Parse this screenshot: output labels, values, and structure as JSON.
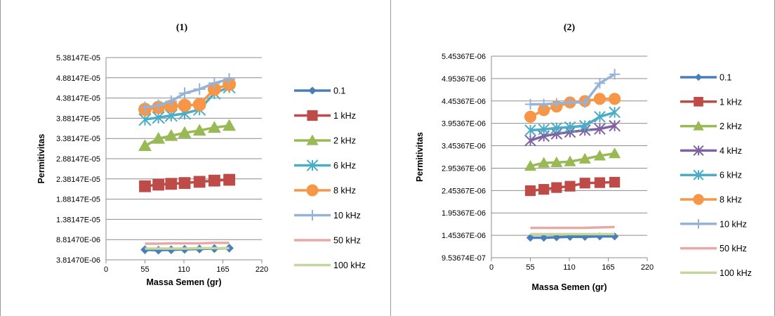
{
  "chart_data": [
    {
      "type": "line",
      "title": "(1)",
      "xlabel": "Massa Semen (gr)",
      "ylabel": "Permitivitas",
      "xlim": [
        0,
        220
      ],
      "x_ticks": [
        "0",
        "55",
        "110",
        "165",
        "220"
      ],
      "y_ticks": [
        "3.81470E-06",
        "8.81470E-06",
        "1.38147E-05",
        "1.88147E-05",
        "2.38147E-05",
        "2.88147E-05",
        "3.38147E-05",
        "3.88147E-05",
        "4.38147E-05",
        "4.88147E-05",
        "5.38147E-05"
      ],
      "ylim": [
        3.8147e-06,
        5.38147e-05
      ],
      "grid": "horizontal",
      "legend_position": "right",
      "x": [
        55,
        74,
        92,
        111,
        132,
        153,
        174
      ],
      "series": [
        {
          "name": "0.1",
          "color": "#4a7ebb",
          "marker": "diamond",
          "values": [
            6.3e-06,
            6.2e-06,
            6.3e-06,
            6.4e-06,
            6.5e-06,
            6.6e-06,
            6.7e-06
          ]
        },
        {
          "name": "1 kHz",
          "color": "#be4b48",
          "marker": "square",
          "values": [
            2.2e-05,
            2.24e-05,
            2.26e-05,
            2.28e-05,
            2.31e-05,
            2.34e-05,
            2.36e-05
          ]
        },
        {
          "name": "2 kHz",
          "color": "#98b954",
          "marker": "triangle",
          "values": [
            3.2e-05,
            3.38e-05,
            3.45e-05,
            3.52e-05,
            3.58e-05,
            3.65e-05,
            3.7e-05
          ]
        },
        {
          "name": "6 kHz",
          "color": "#4bacc6",
          "marker": "asterisk",
          "values": [
            3.85e-05,
            3.9e-05,
            3.95e-05,
            4e-05,
            4.1e-05,
            4.5e-05,
            4.65e-05
          ]
        },
        {
          "name": "8 kHz",
          "color": "#f79646",
          "marker": "circle",
          "values": [
            4.1e-05,
            4.15e-05,
            4.18e-05,
            4.2e-05,
            4.22e-05,
            4.6e-05,
            4.72e-05
          ]
        },
        {
          "name": "10 kHz",
          "color": "#95b3d7",
          "marker": "plus",
          "values": [
            4.15e-05,
            4.2e-05,
            4.3e-05,
            4.5e-05,
            4.6e-05,
            4.75e-05,
            4.85e-05
          ]
        },
        {
          "name": "50 kHz",
          "color": "#e6a9a7",
          "marker": "none",
          "values": [
            7.8e-06,
            7.8e-06,
            7.9e-06,
            7.9e-06,
            7.9e-06,
            8e-06,
            8e-06
          ]
        },
        {
          "name": "100 kHz",
          "color": "#c3d69b",
          "marker": "none",
          "values": [
            6.6e-06,
            6.6e-06,
            6.6e-06,
            6.6e-06,
            6.7e-06,
            6.7e-06,
            6.7e-06
          ]
        }
      ]
    },
    {
      "type": "line",
      "title": "(2)",
      "xlabel": "Massa Semen (gr)",
      "ylabel": "Permitivitas",
      "xlim": [
        0,
        220
      ],
      "x_ticks": [
        "0",
        "55",
        "110",
        "165",
        "220"
      ],
      "y_ticks": [
        "9.53674E-07",
        "1.45367E-06",
        "1.95367E-06",
        "2.45367E-06",
        "2.95367E-06",
        "3.45367E-06",
        "3.95367E-06",
        "4.45367E-06",
        "4.95367E-06",
        "5.45367E-06"
      ],
      "ylim": [
        9.53674e-07,
        5.45367e-06
      ],
      "grid": "horizontal",
      "legend_position": "right",
      "x": [
        55,
        74,
        92,
        111,
        132,
        153,
        174
      ],
      "series": [
        {
          "name": "0.1",
          "color": "#4a7ebb",
          "marker": "diamond",
          "values": [
            1.4e-06,
            1.4e-06,
            1.41e-06,
            1.42e-06,
            1.42e-06,
            1.43e-06,
            1.43e-06
          ]
        },
        {
          "name": "1 kHz",
          "color": "#be4b48",
          "marker": "square",
          "values": [
            2.45e-06,
            2.48e-06,
            2.52e-06,
            2.55e-06,
            2.62e-06,
            2.63e-06,
            2.64e-06
          ]
        },
        {
          "name": "2 kHz",
          "color": "#98b954",
          "marker": "triangle",
          "values": [
            3e-06,
            3.07e-06,
            3.08e-06,
            3.1e-06,
            3.16e-06,
            3.23e-06,
            3.28e-06
          ]
        },
        {
          "name": "4 kHz",
          "color": "#7e62a1",
          "marker": "asterisk",
          "values": [
            3.57e-06,
            3.67e-06,
            3.72e-06,
            3.76e-06,
            3.8e-06,
            3.83e-06,
            3.9e-06
          ]
        },
        {
          "name": "6 kHz",
          "color": "#4bacc6",
          "marker": "asterisk",
          "values": [
            3.8e-06,
            3.82e-06,
            3.85e-06,
            3.87e-06,
            3.9e-06,
            4.1e-06,
            4.2e-06
          ]
        },
        {
          "name": "8 kHz",
          "color": "#f79646",
          "marker": "circle",
          "values": [
            4.1e-06,
            4.25e-06,
            4.33e-06,
            4.42e-06,
            4.45e-06,
            4.5e-06,
            4.5e-06
          ]
        },
        {
          "name": "10 kHz",
          "color": "#95b3d7",
          "marker": "plus",
          "values": [
            4.38e-06,
            4.38e-06,
            4.4e-06,
            4.42e-06,
            4.42e-06,
            4.85e-06,
            5.05e-06
          ]
        },
        {
          "name": "50 kHz",
          "color": "#e6a9a7",
          "marker": "none",
          "values": [
            1.62e-06,
            1.62e-06,
            1.62e-06,
            1.62e-06,
            1.62e-06,
            1.63e-06,
            1.64e-06
          ]
        },
        {
          "name": "100 kHz",
          "color": "#c3d69b",
          "marker": "none",
          "values": [
            1.48e-06,
            1.48e-06,
            1.48e-06,
            1.48e-06,
            1.48e-06,
            1.48e-06,
            1.48e-06
          ]
        }
      ]
    }
  ]
}
